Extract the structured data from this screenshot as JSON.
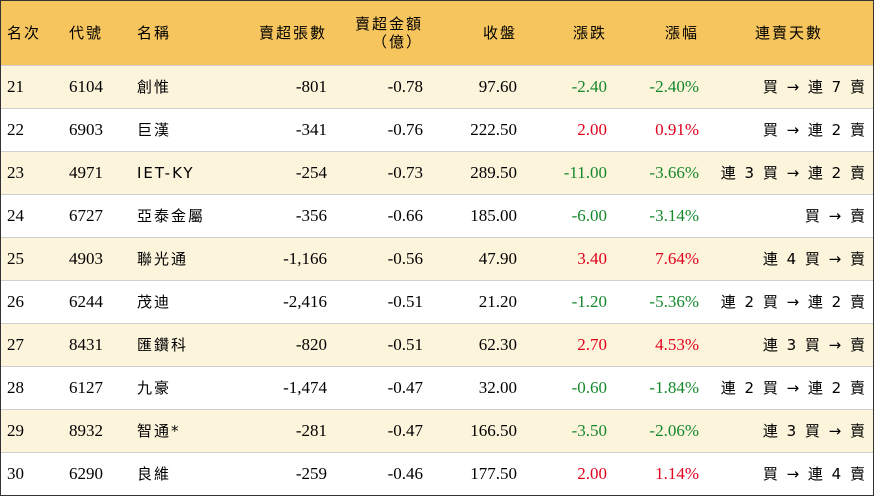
{
  "headers": {
    "rank": "名次",
    "code": "代號",
    "name": "名稱",
    "sell_lots": "賣超張數",
    "sell_amount_line1": "賣超金額",
    "sell_amount_line2": "（億）",
    "close": "收盤",
    "change": "漲跌",
    "change_pct": "漲幅",
    "streak": "連賣天數"
  },
  "rows": [
    {
      "rank": "21",
      "code": "6104",
      "name": "創惟",
      "sell_lots": "-801",
      "sell_amount": "-0.78",
      "close": "97.60",
      "change": "-2.40",
      "change_pct": "-2.40%",
      "streak": "買 → 連 7 賣",
      "dir": "neg"
    },
    {
      "rank": "22",
      "code": "6903",
      "name": "巨漢",
      "sell_lots": "-341",
      "sell_amount": "-0.76",
      "close": "222.50",
      "change": "2.00",
      "change_pct": "0.91%",
      "streak": "買 → 連 2 賣",
      "dir": "pos"
    },
    {
      "rank": "23",
      "code": "4971",
      "name": "IET-KY",
      "sell_lots": "-254",
      "sell_amount": "-0.73",
      "close": "289.50",
      "change": "-11.00",
      "change_pct": "-3.66%",
      "streak": "連 3 買 → 連 2 賣",
      "dir": "neg"
    },
    {
      "rank": "24",
      "code": "6727",
      "name": "亞泰金屬",
      "sell_lots": "-356",
      "sell_amount": "-0.66",
      "close": "185.00",
      "change": "-6.00",
      "change_pct": "-3.14%",
      "streak": "買 → 賣",
      "dir": "neg"
    },
    {
      "rank": "25",
      "code": "4903",
      "name": "聯光通",
      "sell_lots": "-1,166",
      "sell_amount": "-0.56",
      "close": "47.90",
      "change": "3.40",
      "change_pct": "7.64%",
      "streak": "連 4 買 → 賣",
      "dir": "pos"
    },
    {
      "rank": "26",
      "code": "6244",
      "name": "茂迪",
      "sell_lots": "-2,416",
      "sell_amount": "-0.51",
      "close": "21.20",
      "change": "-1.20",
      "change_pct": "-5.36%",
      "streak": "連 2 買 → 連 2 賣",
      "dir": "neg"
    },
    {
      "rank": "27",
      "code": "8431",
      "name": "匯鑽科",
      "sell_lots": "-820",
      "sell_amount": "-0.51",
      "close": "62.30",
      "change": "2.70",
      "change_pct": "4.53%",
      "streak": "連 3 買 → 賣",
      "dir": "pos"
    },
    {
      "rank": "28",
      "code": "6127",
      "name": "九豪",
      "sell_lots": "-1,474",
      "sell_amount": "-0.47",
      "close": "32.00",
      "change": "-0.60",
      "change_pct": "-1.84%",
      "streak": "連 2 買 → 連 2 賣",
      "dir": "neg"
    },
    {
      "rank": "29",
      "code": "8932",
      "name": "智通*",
      "sell_lots": "-281",
      "sell_amount": "-0.47",
      "close": "166.50",
      "change": "-3.50",
      "change_pct": "-2.06%",
      "streak": "連 3 買 → 賣",
      "dir": "neg"
    },
    {
      "rank": "30",
      "code": "6290",
      "name": "良維",
      "sell_lots": "-259",
      "sell_amount": "-0.46",
      "close": "177.50",
      "change": "2.00",
      "change_pct": "1.14%",
      "streak": "買 → 連 4 賣",
      "dir": "pos"
    }
  ],
  "colors": {
    "header_bg": "#f6c55d",
    "odd_row_bg": "#fdf4dc",
    "even_row_bg": "#ffffff",
    "up": "#e0001b",
    "down": "#14882b"
  }
}
